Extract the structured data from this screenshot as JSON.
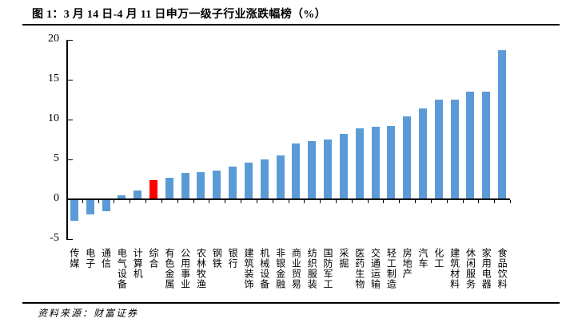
{
  "header": {
    "title": "图 1：3 月 14 日-4 月 11 日申万一级子行业涨跌幅榜（%）"
  },
  "footer": {
    "source": "资料来源：财富证券"
  },
  "colors": {
    "bar": "#5B9BD5",
    "highlight": "#FF0000",
    "axis": "#000000"
  },
  "chart_data": {
    "type": "bar",
    "title": "3 月 14 日-4 月 11 日申万一级子行业涨跌幅榜（%）",
    "xlabel": "",
    "ylabel": "",
    "ylim": [
      -5,
      20
    ],
    "yticks": [
      20,
      15,
      10,
      5,
      0,
      -5
    ],
    "grid": false,
    "legend": "none",
    "highlight_index": 5,
    "categories": [
      "传媒",
      "电子",
      "通信",
      "电气设备",
      "计算机",
      "综合",
      "有色金属",
      "公用事业",
      "农林牧渔",
      "钢铁",
      "银行",
      "建筑装饰",
      "机械设备",
      "非银金融",
      "商业贸易",
      "纺织服装",
      "国防军工",
      "采掘",
      "医药生物",
      "交通运输",
      "轻工制造",
      "房地产",
      "汽车",
      "化工",
      "建筑材料",
      "休闲服务",
      "家用电器",
      "食品饮料"
    ],
    "values": [
      -2.7,
      -1.9,
      -1.5,
      0.5,
      1.1,
      2.4,
      2.7,
      3.3,
      3.4,
      3.6,
      4.1,
      4.6,
      5.0,
      5.5,
      7.0,
      7.3,
      7.5,
      8.2,
      8.9,
      9.1,
      9.2,
      10.4,
      11.4,
      12.5,
      12.5,
      13.5,
      13.5,
      18.7
    ]
  }
}
